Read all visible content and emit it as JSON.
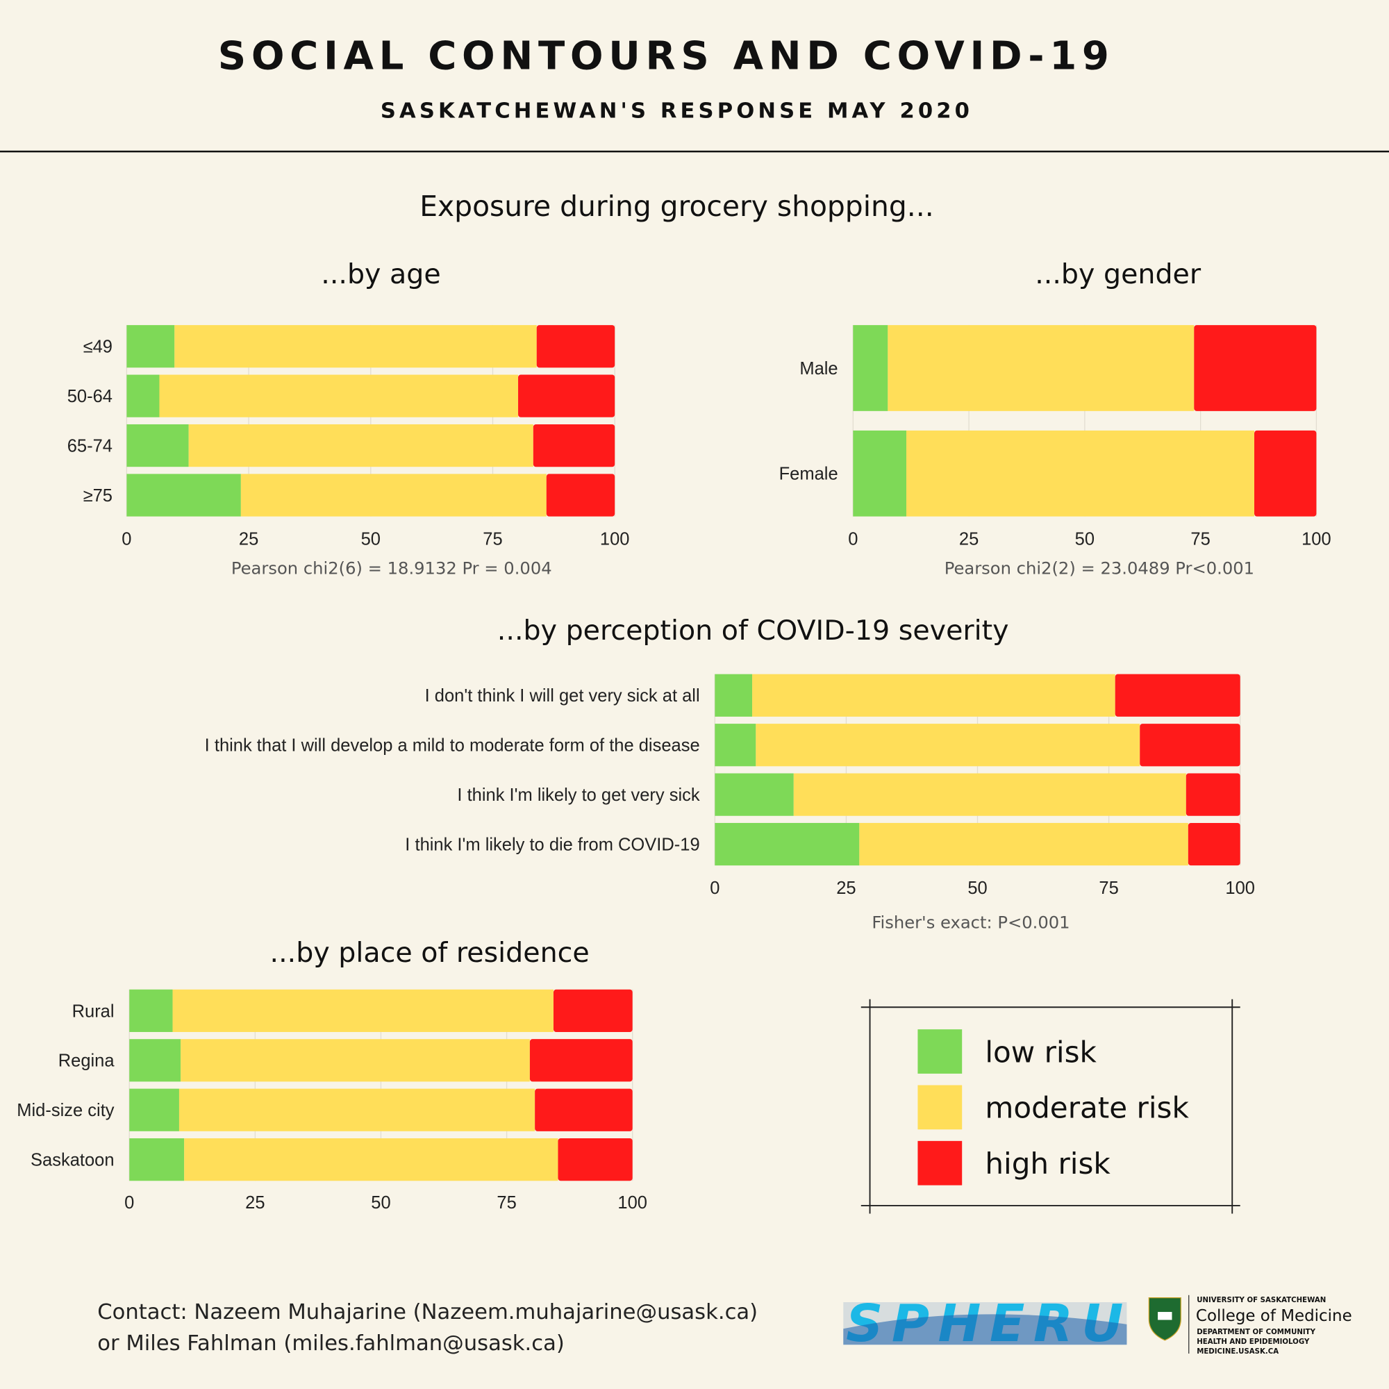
{
  "header": {
    "title": "SOCIAL CONTOURS AND COVID-19",
    "subtitle": "SASKATCHEWAN'S RESPONSE MAY 2020"
  },
  "main_heading": "Exposure during grocery shopping...",
  "colors": {
    "low": "#7ed957",
    "moderate": "#ffde59",
    "high": "#ff1a1a",
    "background": "#f8f4e8"
  },
  "chart_data": [
    {
      "type": "bar",
      "orientation": "horizontal",
      "stacked": true,
      "title": "...by age",
      "categories": [
        "≤49",
        "50-64",
        "65-74",
        "≥75"
      ],
      "series": [
        {
          "name": "low risk",
          "values": [
            9.8,
            6.7,
            12.7,
            23.4
          ]
        },
        {
          "name": "moderate risk",
          "values": [
            74.2,
            73.5,
            70.6,
            62.6
          ]
        },
        {
          "name": "high risk",
          "values": [
            16.0,
            19.8,
            16.7,
            14.0
          ]
        }
      ],
      "xlim": [
        0,
        100
      ],
      "xticks": [
        "0",
        "25",
        "50",
        "75",
        "100"
      ],
      "stat": "Pearson chi2(6) =  18.9132   Pr = 0.004"
    },
    {
      "type": "bar",
      "orientation": "horizontal",
      "stacked": true,
      "title": "...by gender",
      "categories": [
        "Male",
        "Female"
      ],
      "series": [
        {
          "name": "low risk",
          "values": [
            7.5,
            11.5
          ]
        },
        {
          "name": "moderate risk",
          "values": [
            66.1,
            75.1
          ]
        },
        {
          "name": "high risk",
          "values": [
            26.4,
            13.4
          ]
        }
      ],
      "xlim": [
        0,
        100
      ],
      "xticks": [
        "0",
        "25",
        "50",
        "75",
        "100"
      ],
      "stat": "Pearson chi2(2) =  23.0489   Pr<0.001"
    },
    {
      "type": "bar",
      "orientation": "horizontal",
      "stacked": true,
      "title": "...by perception of COVID-19 severity",
      "categories": [
        "I don't think I will get very sick at all",
        "I think that I will develop a mild to moderate form of the disease",
        "I think I'm likely to get very sick",
        "I think I'm likely to die from COVID-19"
      ],
      "series": [
        {
          "name": "low risk",
          "values": [
            7.1,
            7.8,
            15.0,
            27.5
          ]
        },
        {
          "name": "moderate risk",
          "values": [
            69.1,
            73.1,
            74.7,
            62.6
          ]
        },
        {
          "name": "high risk",
          "values": [
            23.8,
            19.1,
            10.3,
            9.9
          ]
        }
      ],
      "xlim": [
        0,
        100
      ],
      "xticks": [
        "0",
        "25",
        "50",
        "75",
        "100"
      ],
      "stat": "Fisher's exact: P<0.001"
    },
    {
      "type": "bar",
      "orientation": "horizontal",
      "stacked": true,
      "title": "...by place of residence",
      "categories": [
        "Rural",
        "Regina",
        "Mid-size city",
        "Saskatoon"
      ],
      "series": [
        {
          "name": "low risk",
          "values": [
            8.6,
            10.2,
            9.9,
            10.9
          ]
        },
        {
          "name": "moderate risk",
          "values": [
            75.7,
            69.4,
            70.7,
            74.3
          ]
        },
        {
          "name": "high risk",
          "values": [
            15.7,
            20.4,
            19.4,
            14.8
          ]
        }
      ],
      "xlim": [
        0,
        100
      ],
      "xticks": [
        "0",
        "25",
        "50",
        "75",
        "100"
      ],
      "stat": ""
    }
  ],
  "legend": {
    "items": [
      {
        "label": "low risk",
        "color": "#7ed957"
      },
      {
        "label": "moderate risk",
        "color": "#ffde59"
      },
      {
        "label": "high risk",
        "color": "#ff1a1a"
      }
    ]
  },
  "footer": {
    "contact_line1": "Contact: Nazeem Muhajarine (Nazeem.muhajarine@usask.ca)",
    "contact_line2": "or Miles Fahlman (miles.fahlman@usask.ca)",
    "spheru_logo": "SPHERU",
    "usask_university": "UNIVERSITY OF SASKATCHEWAN",
    "usask_college": "College of Medicine",
    "usask_dept1": "DEPARTMENT OF COMMUNITY",
    "usask_dept2": "HEALTH AND EPIDEMIOLOGY",
    "usask_url": "MEDICINE.USASK.CA"
  }
}
